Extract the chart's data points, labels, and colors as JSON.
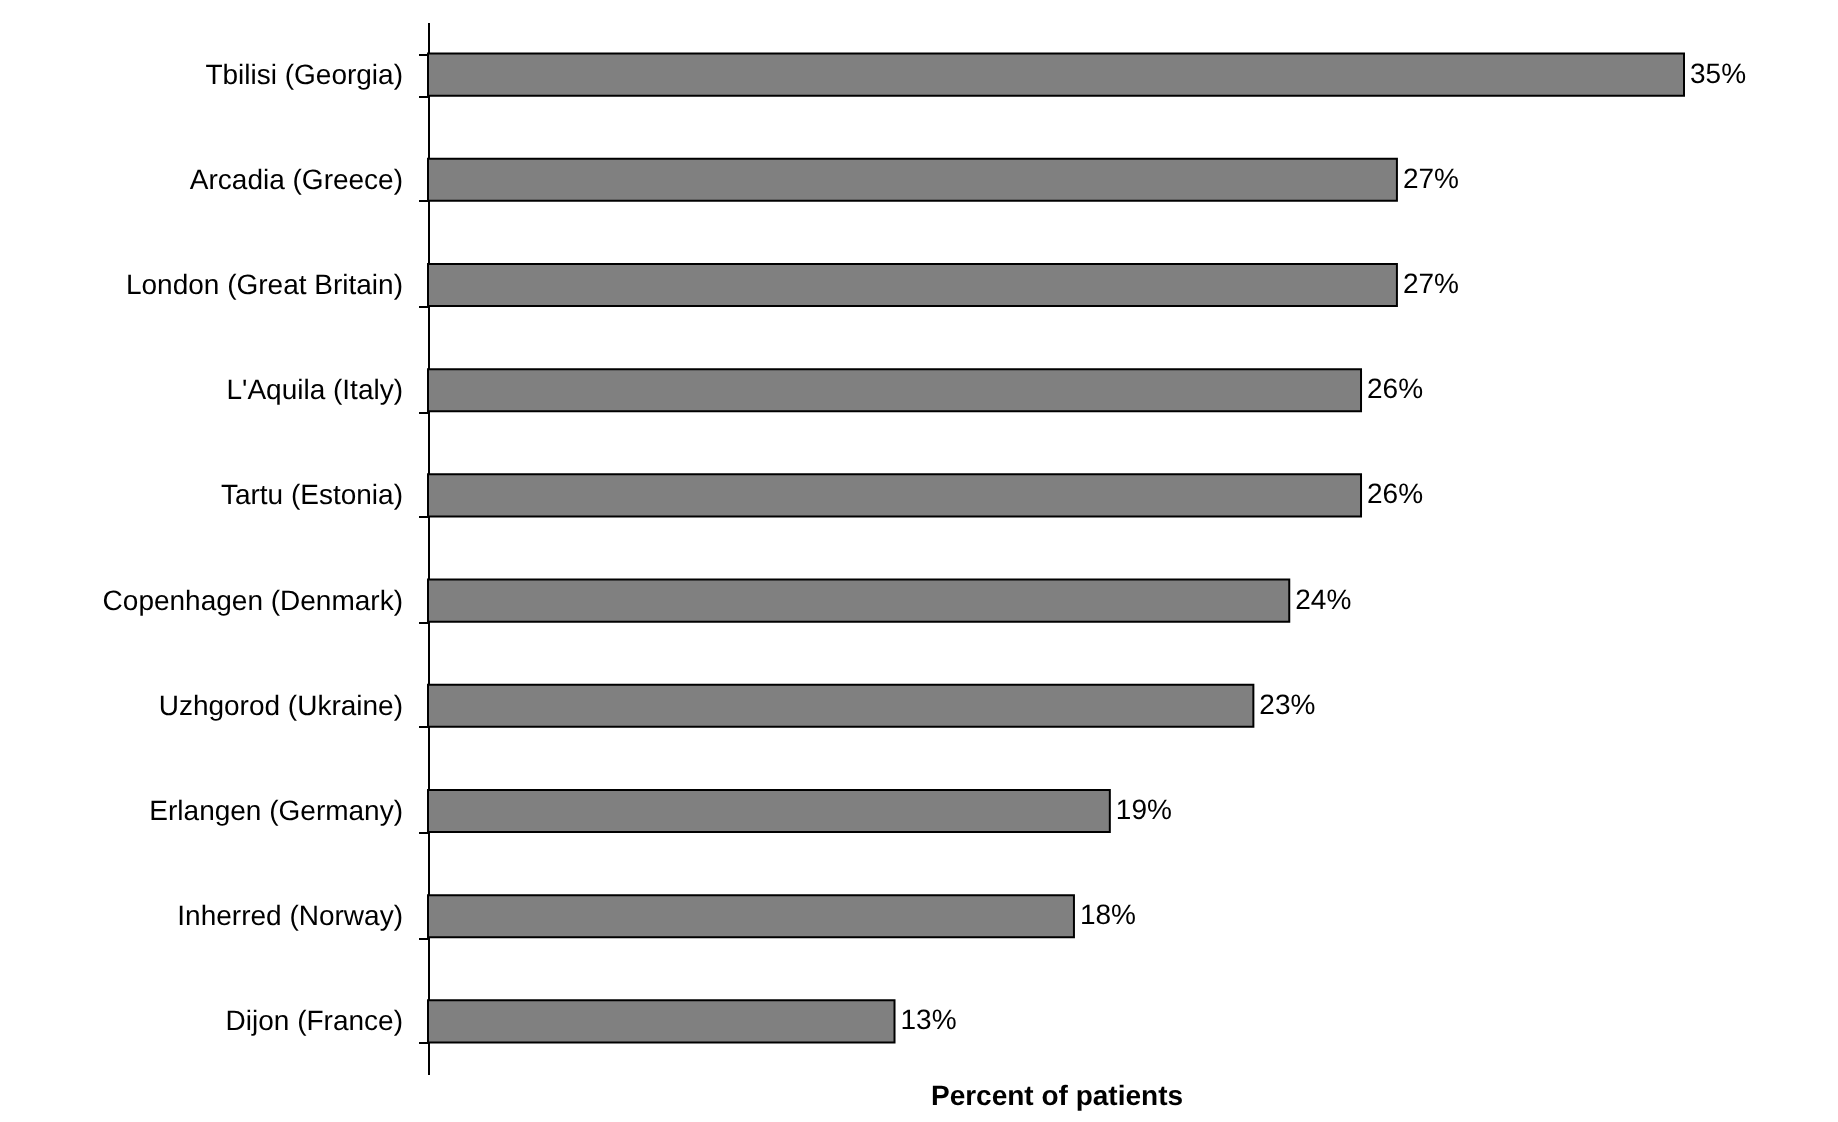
{
  "chart_data": {
    "type": "bar",
    "orientation": "horizontal",
    "xlabel": "Percent of patients",
    "color": "#808080",
    "categories": [
      "Tbilisi (Georgia)",
      "Arcadia (Greece)",
      "London (Great Britain)",
      "L'Aquila (Italy)",
      "Tartu (Estonia)",
      "Copenhagen (Denmark)",
      "Uzhgorod (Ukraine)",
      "Erlangen (Germany)",
      "Inherred (Norway)",
      "Dijon (France)"
    ],
    "values": [
      35,
      27,
      27,
      26,
      26,
      24,
      23,
      19,
      18,
      13
    ],
    "value_labels": [
      "35%",
      "27%",
      "27%",
      "26%",
      "26%",
      "24%",
      "23%",
      "19%",
      "18%",
      "13%"
    ]
  }
}
